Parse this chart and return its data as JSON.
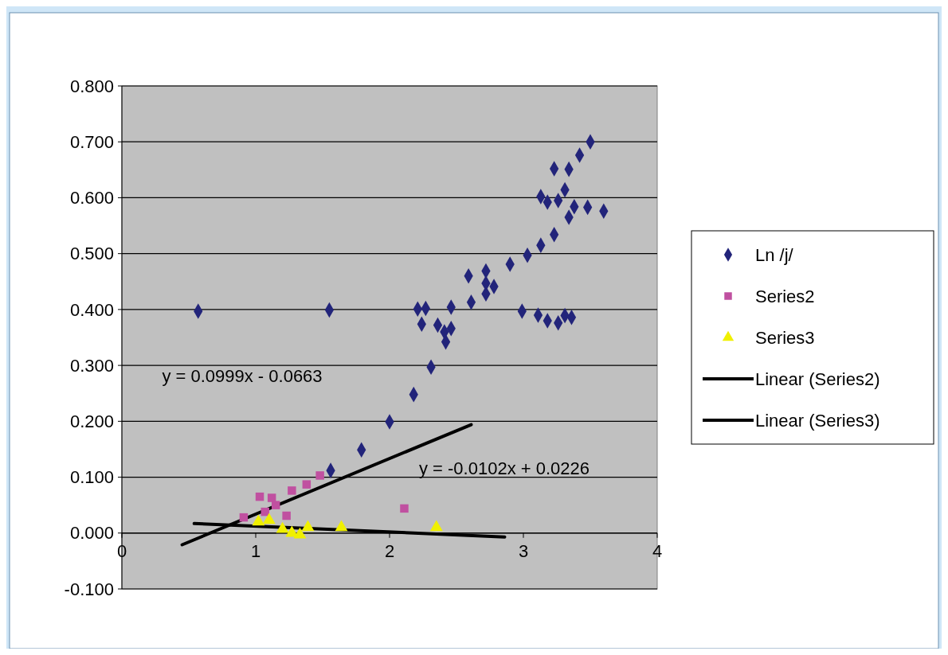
{
  "chart_data": {
    "type": "scatter",
    "xlim": [
      0,
      4
    ],
    "xticks": [
      0,
      1,
      2,
      3,
      4
    ],
    "ylim": [
      -0.1,
      0.8
    ],
    "yticks": [
      {
        "value": -0.1,
        "label": "-0.100"
      },
      {
        "value": 0,
        "label": "0.000"
      },
      {
        "value": 0.1,
        "label": "0.100"
      },
      {
        "value": 0.2,
        "label": "0.200"
      },
      {
        "value": 0.3,
        "label": "0.300"
      },
      {
        "value": 0.4,
        "label": "0.400"
      },
      {
        "value": 0.5,
        "label": "0.500"
      },
      {
        "value": 0.6,
        "label": "0.600"
      },
      {
        "value": 0.7,
        "label": "0.700"
      },
      {
        "value": 0.8,
        "label": "0.800"
      }
    ],
    "grid": "y",
    "legend": "right",
    "annotations": [
      "y = 0.0999x - 0.0663",
      "y = -0.0102x + 0.0226"
    ],
    "series": [
      {
        "name": "Ln /j/",
        "color": "#22247a",
        "marker": "diamond",
        "x": [
          0.57,
          1.55,
          2.21,
          2.27,
          2.24,
          2.99,
          3.11,
          3.18,
          3.26,
          3.31,
          3.36,
          3.23,
          3.6,
          3.48,
          3.13,
          3.18,
          1.56,
          1.79,
          2.0,
          2.18,
          2.31,
          2.42,
          2.46,
          2.36,
          2.41,
          2.46,
          2.61,
          2.72,
          2.78,
          2.72,
          2.59,
          2.72,
          2.9,
          3.03,
          3.13,
          3.23,
          3.34,
          3.38,
          3.26,
          3.31,
          3.34,
          3.42,
          3.5
        ],
        "values": [
          0.397,
          0.399,
          0.401,
          0.402,
          0.374,
          0.397,
          0.39,
          0.38,
          0.376,
          0.389,
          0.386,
          0.652,
          0.576,
          0.583,
          0.602,
          0.592,
          0.112,
          0.149,
          0.199,
          0.248,
          0.297,
          0.342,
          0.366,
          0.372,
          0.36,
          0.404,
          0.413,
          0.428,
          0.441,
          0.447,
          0.46,
          0.469,
          0.481,
          0.497,
          0.515,
          0.534,
          0.565,
          0.584,
          0.595,
          0.614,
          0.651,
          0.676,
          0.7
        ]
      },
      {
        "name": "Series2",
        "color": "#c050a0",
        "marker": "square",
        "x": [
          0.91,
          1.03,
          1.07,
          1.12,
          1.15,
          1.23,
          1.27,
          1.38,
          1.48,
          2.11
        ],
        "values": [
          0.028,
          0.065,
          0.038,
          0.063,
          0.05,
          0.031,
          0.076,
          0.087,
          0.103,
          0.044
        ]
      },
      {
        "name": "Series3",
        "color": "#f0f000",
        "marker": "triangle",
        "x": [
          1.02,
          1.1,
          1.2,
          1.27,
          1.33,
          1.39,
          1.64,
          2.35
        ],
        "values": [
          0.02,
          0.023,
          0.007,
          0.0,
          -0.003,
          0.01,
          0.01,
          0.01
        ]
      },
      {
        "name": "Linear (Series2)",
        "type": "line",
        "color": "#000000",
        "marker": "none",
        "x": [
          0.45,
          2.61
        ],
        "values": [
          -0.021,
          0.194
        ]
      },
      {
        "name": "Linear (Series3)",
        "type": "line",
        "color": "#000000",
        "marker": "none",
        "x": [
          0.54,
          2.86
        ],
        "values": [
          0.017,
          -0.007
        ]
      }
    ]
  }
}
